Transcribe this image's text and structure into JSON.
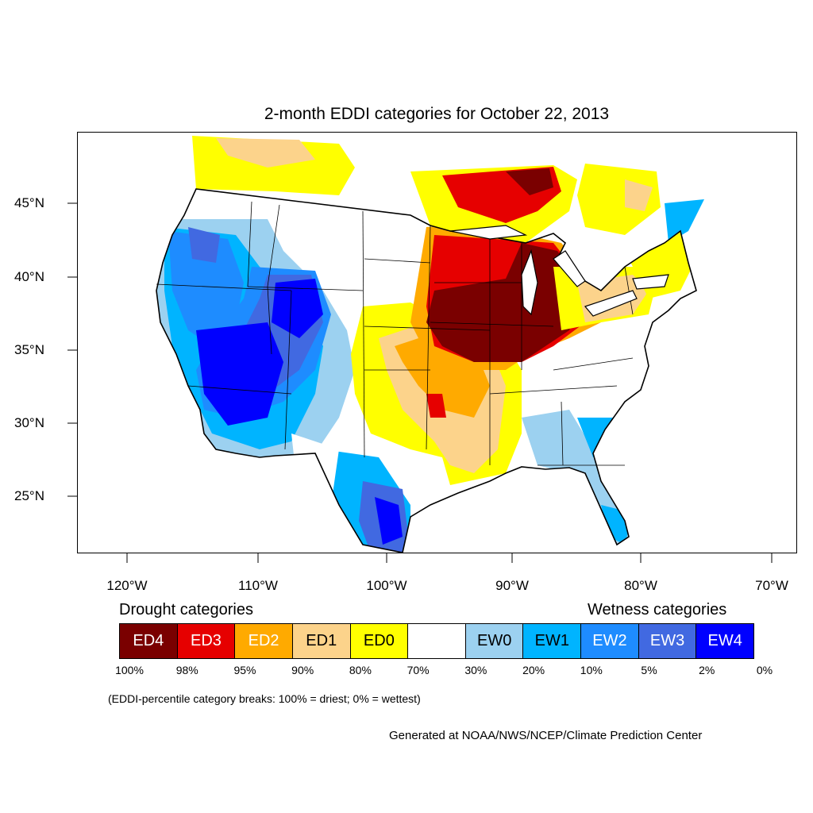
{
  "title": "2-month EDDI categories for October 22, 2013",
  "lat_labels": [
    "45°N",
    "40°N",
    "35°N",
    "30°N",
    "25°N"
  ],
  "lon_labels": [
    "120°W",
    "110°W",
    "100°W",
    "90°W",
    "80°W",
    "70°W"
  ],
  "legend": {
    "drought_title": "Drought categories",
    "wetness_title": "Wetness categories",
    "categories": [
      {
        "label": "ED4",
        "color": "#7a0000",
        "text_color": "#ffffff"
      },
      {
        "label": "ED3",
        "color": "#e60000",
        "text_color": "#ffffff"
      },
      {
        "label": "ED2",
        "color": "#ffaa00",
        "text_color": "#ffffff"
      },
      {
        "label": "ED1",
        "color": "#fcd38b",
        "text_color": "#000000"
      },
      {
        "label": "ED0",
        "color": "#ffff00",
        "text_color": "#000000"
      },
      {
        "label": "",
        "color": "#ffffff",
        "text_color": "#000000"
      },
      {
        "label": "EW0",
        "color": "#9cd1f0",
        "text_color": "#000000"
      },
      {
        "label": "EW1",
        "color": "#00b4ff",
        "text_color": "#000000"
      },
      {
        "label": "EW2",
        "color": "#1e8cff",
        "text_color": "#ffffff"
      },
      {
        "label": "EW3",
        "color": "#4169e1",
        "text_color": "#ffffff"
      },
      {
        "label": "EW4",
        "color": "#0000ff",
        "text_color": "#ffffff"
      }
    ],
    "breaks": [
      "100%",
      "98%",
      "95%",
      "90%",
      "80%",
      "70%",
      "30%",
      "20%",
      "10%",
      "5%",
      "2%",
      "0%"
    ]
  },
  "note": "(EDDI-percentile category breaks: 100% = driest; 0% = wettest)",
  "credit": "Generated at NOAA/NWS/NCEP/Climate Prediction Center"
}
